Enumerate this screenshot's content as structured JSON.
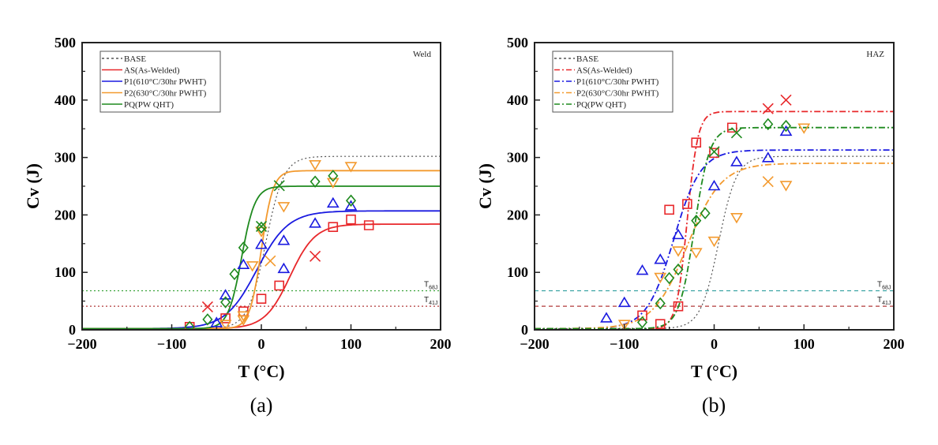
{
  "colors": {
    "BASE": "#555555",
    "AS": "#e8282b",
    "P1": "#1a1ae0",
    "P2": "#f39a2e",
    "PQ": "#1f8a1f",
    "T68J_a": "#3aa33a",
    "T41J_a": "#b03a3a",
    "T68J_b": "#3aa3a3",
    "T41J_b": "#b03a3a"
  },
  "chart_data": [
    {
      "id": "a",
      "type": "scatter",
      "caption": "(a)",
      "panel_label": "Weld",
      "title": "",
      "xlabel": "T (°C)",
      "ylabel": "Cv (J)",
      "xlim": [
        -200,
        200
      ],
      "ylim": [
        0,
        500
      ],
      "x_ticks": [
        -200,
        -100,
        0,
        100,
        200
      ],
      "x_tick_labels": [
        "−200",
        "−100",
        "0",
        "100",
        "200"
      ],
      "y_ticks": [
        0,
        100,
        200,
        300,
        400,
        500
      ],
      "y_tick_labels": [
        "0",
        "100",
        "200",
        "300",
        "400",
        "500"
      ],
      "grid": false,
      "legend_position": "top-left",
      "line_style": "solid",
      "reference_lines": [
        {
          "label": "T",
          "sub": "68J",
          "value": 68,
          "color_key": "T68J_a"
        },
        {
          "label": "T",
          "sub": "41J",
          "value": 41,
          "color_key": "T41J_a"
        }
      ],
      "series": [
        {
          "key": "BASE",
          "name": "BASE",
          "curve": {
            "LS": 2,
            "US": 302,
            "T0": 5,
            "C": 20
          },
          "style": "dotted",
          "points": []
        },
        {
          "key": "AS",
          "name": "AS(As-Welded)",
          "curve": {
            "LS": 2,
            "US": 184,
            "T0": 32,
            "C": 28
          },
          "points": [
            {
              "x": -80,
              "y": 5,
              "m": "square"
            },
            {
              "x": -40,
              "y": 20,
              "m": "square"
            },
            {
              "x": -20,
              "y": 32,
              "m": "square"
            },
            {
              "x": 0,
              "y": 54,
              "m": "square"
            },
            {
              "x": 20,
              "y": 77,
              "m": "square"
            },
            {
              "x": 80,
              "y": 179,
              "m": "square"
            },
            {
              "x": 100,
              "y": 192,
              "m": "square"
            },
            {
              "x": 120,
              "y": 182,
              "m": "square"
            },
            {
              "x": -60,
              "y": 40,
              "m": "x"
            },
            {
              "x": 60,
              "y": 128,
              "m": "x"
            }
          ]
        },
        {
          "key": "P1",
          "name": "P1(610°C/30hr PWHT)",
          "curve": {
            "LS": 2,
            "US": 207,
            "T0": -5,
            "C": 35
          },
          "points": [
            {
              "x": -50,
              "y": 12,
              "m": "tri-up"
            },
            {
              "x": -40,
              "y": 60,
              "m": "tri-up"
            },
            {
              "x": -20,
              "y": 113,
              "m": "tri-up"
            },
            {
              "x": 0,
              "y": 148,
              "m": "tri-up"
            },
            {
              "x": 25,
              "y": 106,
              "m": "tri-up"
            },
            {
              "x": 25,
              "y": 155,
              "m": "tri-up"
            },
            {
              "x": 60,
              "y": 185,
              "m": "tri-up"
            },
            {
              "x": 80,
              "y": 220,
              "m": "tri-up"
            },
            {
              "x": 100,
              "y": 215,
              "m": "tri-up"
            }
          ]
        },
        {
          "key": "P2",
          "name": "P2(630°C/30hr PWHT)",
          "curve": {
            "LS": 2,
            "US": 277,
            "T0": 0,
            "C": 13
          },
          "points": [
            {
              "x": -40,
              "y": 10,
              "m": "tri-down"
            },
            {
              "x": -20,
              "y": 18,
              "m": "tri-down"
            },
            {
              "x": -20,
              "y": 25,
              "m": "tri-down"
            },
            {
              "x": -10,
              "y": 112,
              "m": "tri-down"
            },
            {
              "x": 0,
              "y": 172,
              "m": "tri-down"
            },
            {
              "x": 25,
              "y": 215,
              "m": "tri-down"
            },
            {
              "x": 60,
              "y": 288,
              "m": "tri-down"
            },
            {
              "x": 80,
              "y": 257,
              "m": "tri-down"
            },
            {
              "x": 100,
              "y": 285,
              "m": "tri-down"
            },
            {
              "x": 10,
              "y": 120,
              "m": "x"
            }
          ]
        },
        {
          "key": "PQ",
          "name": "PQ(PW QHT)",
          "curve": {
            "LS": 2,
            "US": 250,
            "T0": -22,
            "C": 15
          },
          "points": [
            {
              "x": -80,
              "y": 5,
              "m": "diamond"
            },
            {
              "x": -60,
              "y": 18,
              "m": "diamond"
            },
            {
              "x": -40,
              "y": 48,
              "m": "diamond"
            },
            {
              "x": -30,
              "y": 97,
              "m": "diamond"
            },
            {
              "x": -20,
              "y": 143,
              "m": "diamond"
            },
            {
              "x": 0,
              "y": 178,
              "m": "diamond"
            },
            {
              "x": 60,
              "y": 258,
              "m": "diamond"
            },
            {
              "x": 80,
              "y": 268,
              "m": "diamond"
            },
            {
              "x": 100,
              "y": 225,
              "m": "diamond"
            },
            {
              "x": 0,
              "y": 180,
              "m": "x"
            },
            {
              "x": 20,
              "y": 251,
              "m": "x"
            }
          ]
        }
      ]
    },
    {
      "id": "b",
      "type": "scatter",
      "caption": "(b)",
      "panel_label": "HAZ",
      "title": "",
      "xlabel": "T (°C)",
      "ylabel": "Cv (J)",
      "xlim": [
        -200,
        200
      ],
      "ylim": [
        0,
        500
      ],
      "x_ticks": [
        -200,
        -100,
        0,
        100,
        200
      ],
      "x_tick_labels": [
        "−200",
        "−100",
        "0",
        "100",
        "200"
      ],
      "y_ticks": [
        0,
        100,
        200,
        300,
        400,
        500
      ],
      "y_tick_labels": [
        "0",
        "100",
        "200",
        "300",
        "400",
        "500"
      ],
      "grid": false,
      "legend_position": "top-left",
      "line_style": "dash-dot",
      "reference_lines": [
        {
          "label": "T",
          "sub": "68J",
          "value": 68,
          "color_key": "T68J_b"
        },
        {
          "label": "T",
          "sub": "41J",
          "value": 41,
          "color_key": "T41J_b"
        }
      ],
      "series": [
        {
          "key": "BASE",
          "name": "BASE",
          "curve": {
            "LS": 2,
            "US": 302,
            "T0": 5,
            "C": 20
          },
          "style": "dotted",
          "points": []
        },
        {
          "key": "AS",
          "name": "AS(As-Welded)",
          "curve": {
            "LS": 2,
            "US": 380,
            "T0": -30,
            "C": 12
          },
          "points": [
            {
              "x": -80,
              "y": 25,
              "m": "square"
            },
            {
              "x": -60,
              "y": 10,
              "m": "square"
            },
            {
              "x": -50,
              "y": 209,
              "m": "square"
            },
            {
              "x": -40,
              "y": 41,
              "m": "square"
            },
            {
              "x": -30,
              "y": 219,
              "m": "square"
            },
            {
              "x": -20,
              "y": 326,
              "m": "square"
            },
            {
              "x": 0,
              "y": 308,
              "m": "square"
            },
            {
              "x": 20,
              "y": 352,
              "m": "square"
            },
            {
              "x": 60,
              "y": 385,
              "m": "x"
            },
            {
              "x": 80,
              "y": 400,
              "m": "x"
            }
          ]
        },
        {
          "key": "P1",
          "name": "P1(610°C/30hr PWHT)",
          "curve": {
            "LS": 2,
            "US": 313,
            "T0": -45,
            "C": 30
          },
          "points": [
            {
              "x": -120,
              "y": 20,
              "m": "tri-up"
            },
            {
              "x": -100,
              "y": 47,
              "m": "tri-up"
            },
            {
              "x": -80,
              "y": 103,
              "m": "tri-up"
            },
            {
              "x": -60,
              "y": 122,
              "m": "tri-up"
            },
            {
              "x": -40,
              "y": 165,
              "m": "tri-up"
            },
            {
              "x": 0,
              "y": 250,
              "m": "tri-up"
            },
            {
              "x": 25,
              "y": 292,
              "m": "tri-up"
            },
            {
              "x": 60,
              "y": 299,
              "m": "tri-up"
            },
            {
              "x": 80,
              "y": 345,
              "m": "tri-up"
            }
          ]
        },
        {
          "key": "P2",
          "name": "P2(630°C/30hr PWHT)",
          "curve": {
            "LS": 2,
            "US": 290,
            "T0": -30,
            "C": 38
          },
          "points": [
            {
              "x": -100,
              "y": 10,
              "m": "tri-down"
            },
            {
              "x": -60,
              "y": 92,
              "m": "tri-down"
            },
            {
              "x": -40,
              "y": 138,
              "m": "tri-down"
            },
            {
              "x": -20,
              "y": 135,
              "m": "tri-down"
            },
            {
              "x": 0,
              "y": 155,
              "m": "tri-down"
            },
            {
              "x": 25,
              "y": 196,
              "m": "tri-down"
            },
            {
              "x": 80,
              "y": 252,
              "m": "tri-down"
            },
            {
              "x": 100,
              "y": 352,
              "m": "tri-down"
            },
            {
              "x": 60,
              "y": 258,
              "m": "x"
            }
          ]
        },
        {
          "key": "PQ",
          "name": "PQ(PW QHT)",
          "curve": {
            "LS": 2,
            "US": 352,
            "T0": -22,
            "C": 17
          },
          "points": [
            {
              "x": -80,
              "y": 13,
              "m": "diamond"
            },
            {
              "x": -60,
              "y": 46,
              "m": "diamond"
            },
            {
              "x": -50,
              "y": 90,
              "m": "diamond"
            },
            {
              "x": -40,
              "y": 105,
              "m": "diamond"
            },
            {
              "x": -20,
              "y": 190,
              "m": "diamond"
            },
            {
              "x": -10,
              "y": 203,
              "m": "diamond"
            },
            {
              "x": 60,
              "y": 358,
              "m": "diamond"
            },
            {
              "x": 80,
              "y": 355,
              "m": "diamond"
            },
            {
              "x": 0,
              "y": 310,
              "m": "x"
            },
            {
              "x": 25,
              "y": 343,
              "m": "x"
            }
          ]
        }
      ]
    }
  ]
}
